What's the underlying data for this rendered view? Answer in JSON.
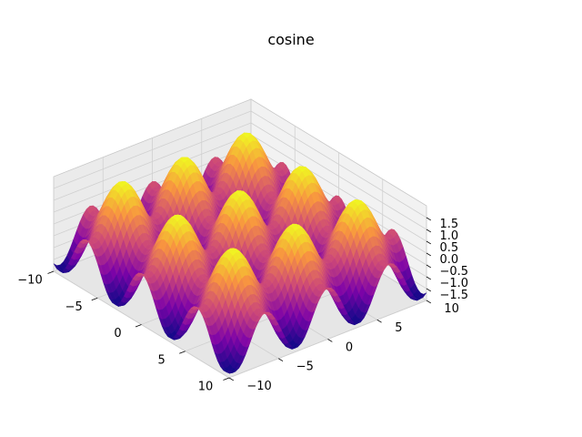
{
  "chart_data": {
    "type": "surface3d",
    "title": "cosine",
    "function": "z = cos(x) + cos(y)",
    "colormap": "plasma",
    "x_range": [
      -10,
      10
    ],
    "y_range": [
      -10,
      10
    ],
    "zlim": [
      -2,
      2
    ],
    "x_ticks": [
      -10,
      -5,
      0,
      5,
      10
    ],
    "y_ticks": [
      -10,
      -5,
      0,
      5,
      10
    ],
    "z_ticks": [
      -1.5,
      -1.0,
      -0.5,
      0.0,
      0.5,
      1.0,
      1.5
    ],
    "x_tick_labels": [
      "−10",
      "−5",
      "0",
      "5",
      "10"
    ],
    "y_tick_labels": [
      "−10",
      "−5",
      "0",
      "5",
      "10"
    ],
    "z_tick_labels": [
      "−1.5",
      "−1.0",
      "−0.5",
      "0.0",
      "0.5",
      "1.0",
      "1.5"
    ],
    "grid": true,
    "pane_colors": {
      "back": "#f2f2f2",
      "side": "#ebebeb",
      "floor": "#e6e6e6"
    },
    "grid_color": "#d0d0d0"
  }
}
